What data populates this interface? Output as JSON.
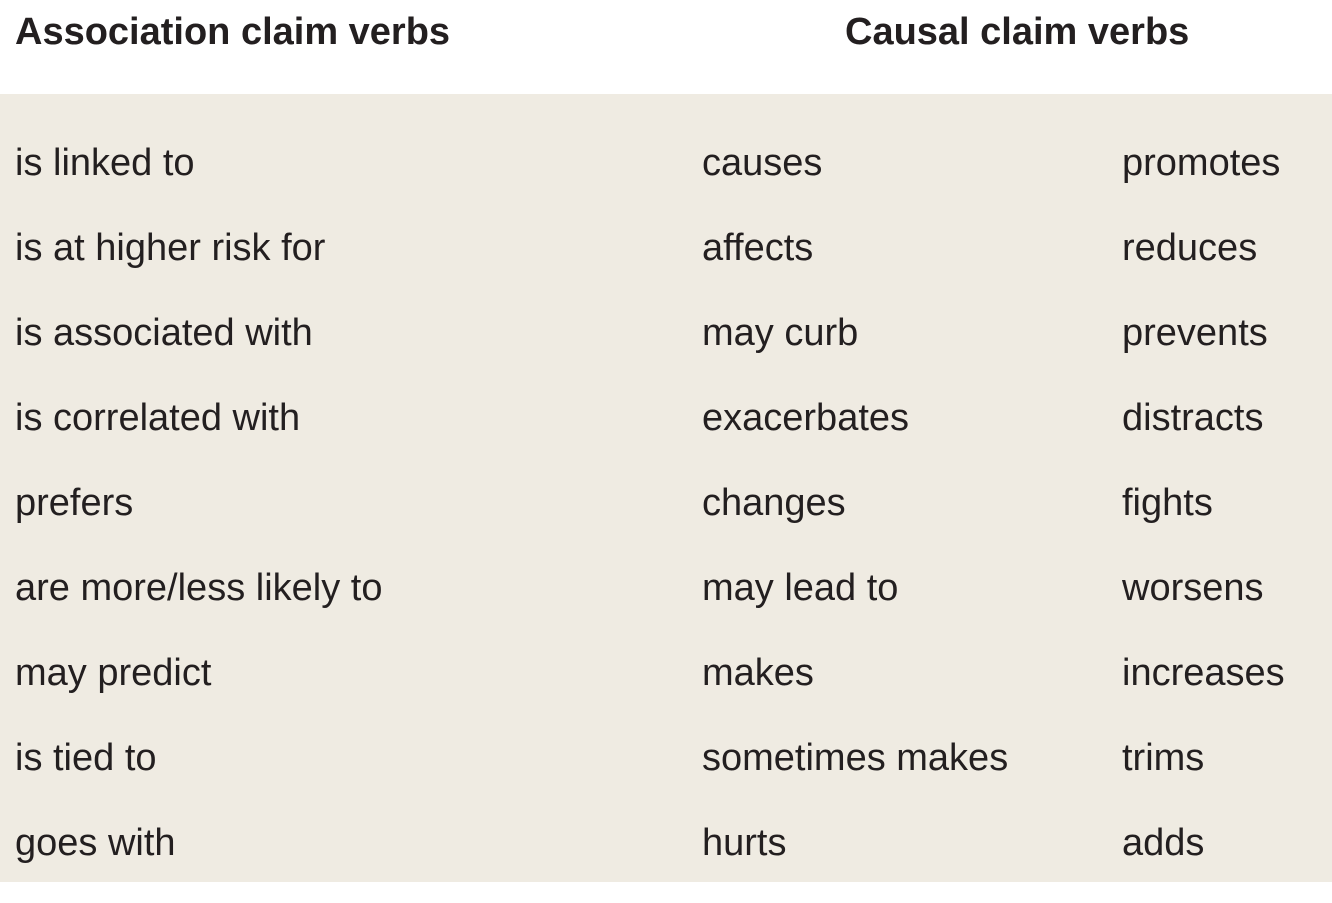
{
  "headers": {
    "association": "Association claim verbs",
    "causal": "Causal claim verbs"
  },
  "colors": {
    "panel_background": "#efebe2",
    "header_background": "#ffffff",
    "text": "#231f20"
  },
  "association_verbs": [
    "is linked to",
    "is at higher risk for",
    "is associated with",
    "is correlated with",
    "prefers",
    "are more/less likely to",
    "may predict",
    "is tied to",
    "goes with"
  ],
  "causal_verbs_col1": [
    "causes",
    "affects",
    "may curb",
    "exacerbates",
    "changes",
    "may lead to",
    "makes",
    "sometimes makes",
    "hurts"
  ],
  "causal_verbs_col2": [
    "promotes",
    "reduces",
    "prevents",
    "distracts",
    "fights",
    "worsens",
    "increases",
    "trims",
    "adds"
  ]
}
